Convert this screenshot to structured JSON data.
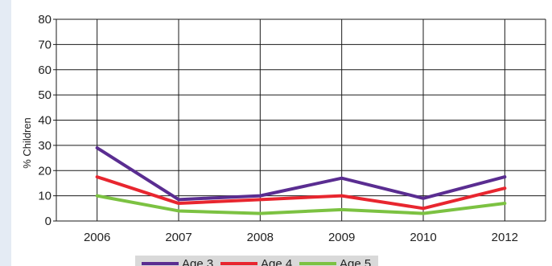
{
  "chart_data": {
    "type": "line",
    "title": "",
    "xlabel": "",
    "ylabel": "% Children",
    "ylim": [
      0,
      80
    ],
    "yticks": [
      0,
      10,
      20,
      30,
      40,
      50,
      60,
      70,
      80
    ],
    "categories": [
      "2006",
      "2007",
      "2008",
      "2009",
      "2010",
      "2012"
    ],
    "grid": true,
    "legend_position": "bottom",
    "series": [
      {
        "name": "Age 3",
        "color": "#5a2d91",
        "values": [
          29,
          8.5,
          10,
          17,
          9,
          17.5
        ]
      },
      {
        "name": "Age 4",
        "color": "#e8262f",
        "values": [
          17.5,
          7,
          8.5,
          10,
          5,
          13
        ]
      },
      {
        "name": "Age 5",
        "color": "#7cc242",
        "values": [
          10,
          4,
          3,
          4.5,
          3,
          7
        ]
      }
    ]
  }
}
